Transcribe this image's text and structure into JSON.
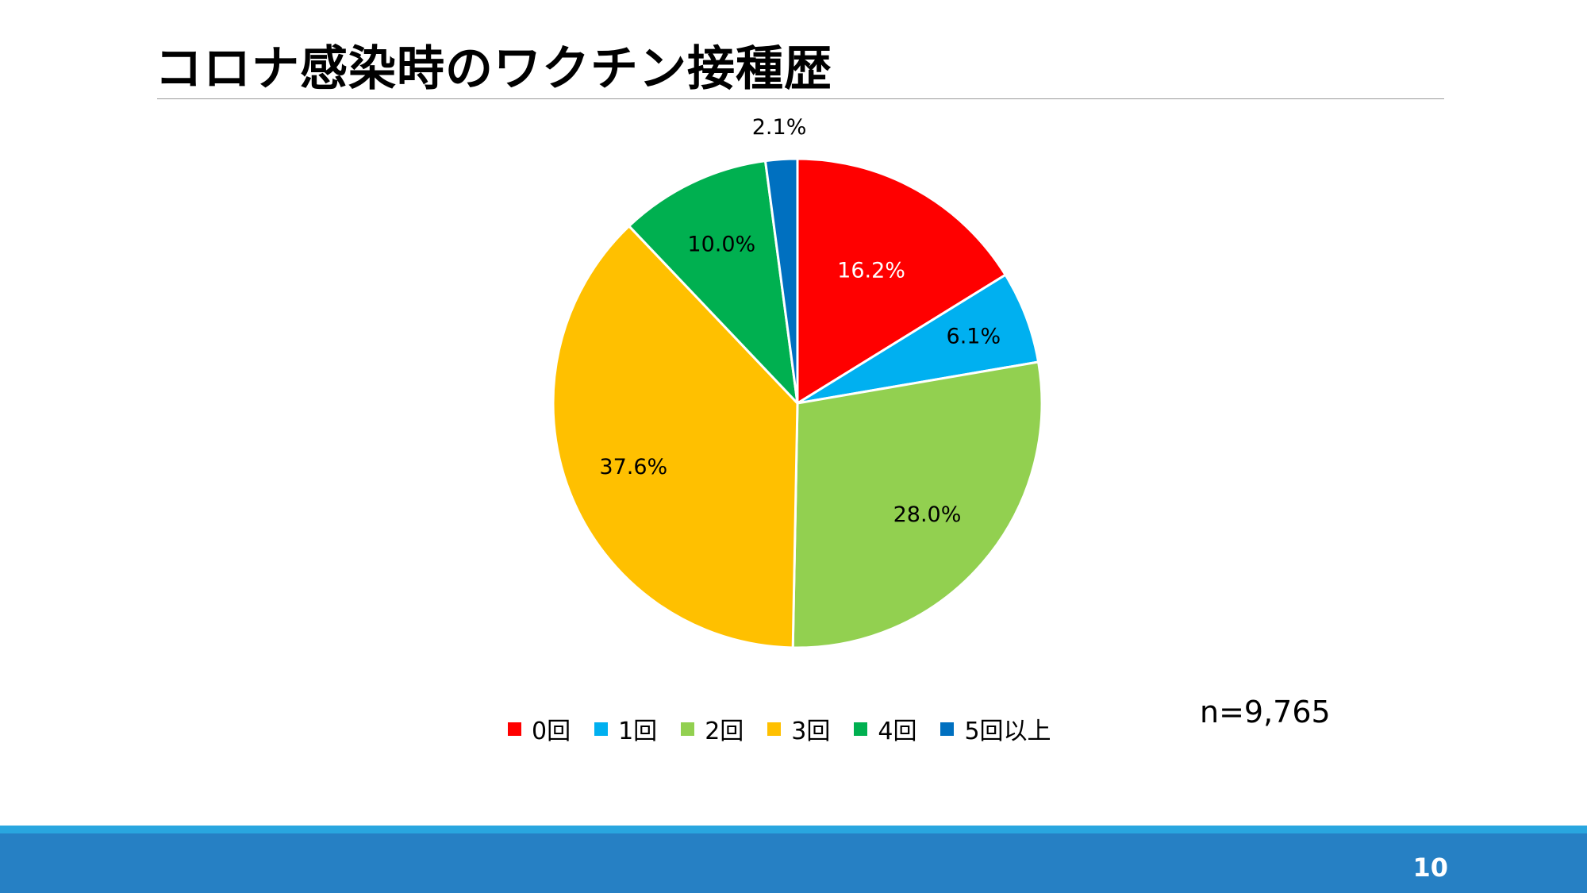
{
  "slide": {
    "title": "コロナ感染時のワクチン接種歴",
    "sample_size": "n=9,765",
    "page_number": "10"
  },
  "chart_data": {
    "type": "pie",
    "categories": [
      "0回",
      "1回",
      "2回",
      "3回",
      "4回",
      "5回以上"
    ],
    "values": [
      16.2,
      6.1,
      28.0,
      37.6,
      10.0,
      2.1
    ],
    "data_labels": [
      "16.2%",
      "6.1%",
      "28.0%",
      "37.6%",
      "10.0%",
      "2.1%"
    ],
    "label_colors": [
      "#ffffff",
      "#000000",
      "#000000",
      "#000000",
      "#000000",
      "#000000"
    ],
    "colors": [
      "#ff0000",
      "#00b0f0",
      "#92d050",
      "#ffc000",
      "#00b050",
      "#0070c0"
    ],
    "start": "12 o'clock, clockwise",
    "legend_position": "bottom"
  }
}
